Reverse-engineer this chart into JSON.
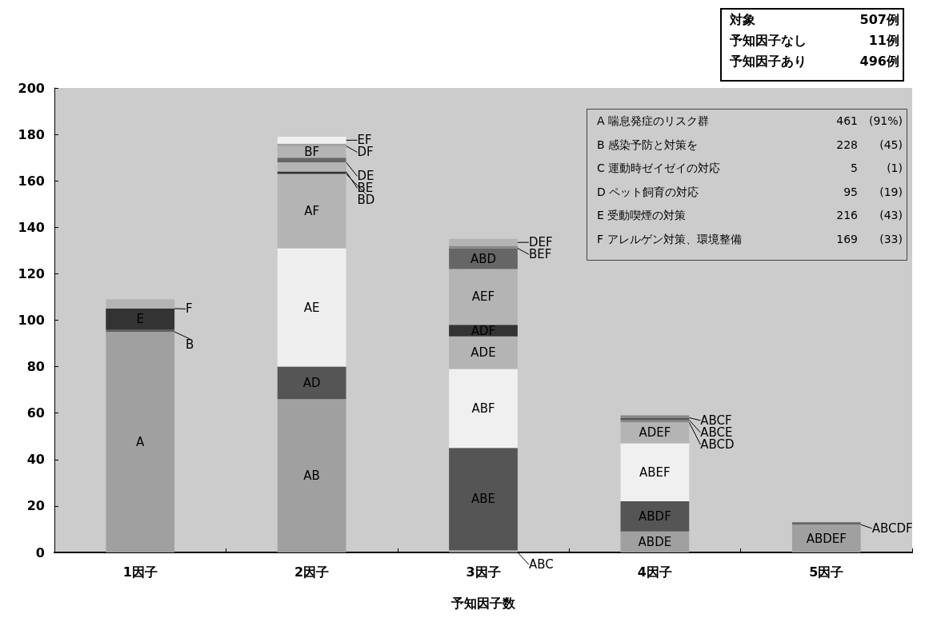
{
  "chart_data": {
    "type": "bar",
    "stacked": true,
    "xlabel": "予知因子数",
    "categories": [
      "1因子",
      "2因子",
      "3因子",
      "4因子",
      "5因子"
    ],
    "ylim": [
      0,
      200
    ],
    "yticks": [
      0,
      20,
      40,
      60,
      80,
      100,
      120,
      140,
      160,
      180,
      200
    ],
    "grid": false,
    "legend": false,
    "series": [
      {
        "name": "A",
        "color": "#a0a0a0",
        "values": [
          95,
          null,
          null,
          null,
          null
        ]
      },
      {
        "name": "B",
        "color": "#606060",
        "values": [
          1,
          null,
          null,
          null,
          null
        ]
      },
      {
        "name": "E",
        "color": "#333333",
        "values": [
          9,
          null,
          null,
          null,
          null
        ]
      },
      {
        "name": "F",
        "color": "#b4b4b4",
        "values": [
          4,
          null,
          null,
          null,
          null
        ]
      },
      {
        "name": "AB",
        "color": "#a0a0a0",
        "values": [
          null,
          66,
          null,
          null,
          null
        ]
      },
      {
        "name": "AD",
        "color": "#555555",
        "values": [
          null,
          14,
          null,
          null,
          null
        ]
      },
      {
        "name": "AE",
        "color": "#efefef",
        "values": [
          null,
          51,
          null,
          null,
          null
        ]
      },
      {
        "name": "AF",
        "color": "#b4b4b4",
        "values": [
          null,
          32,
          null,
          null,
          null
        ]
      },
      {
        "name": "BD",
        "color": "#333333",
        "values": [
          null,
          1,
          null,
          null,
          null
        ]
      },
      {
        "name": "BE",
        "color": "#b4b4b4",
        "values": [
          null,
          4,
          null,
          null,
          null
        ]
      },
      {
        "name": "DE",
        "color": "#666666",
        "values": [
          null,
          2,
          null,
          null,
          null
        ]
      },
      {
        "name": "BF",
        "color": "#b4b4b4",
        "values": [
          null,
          5,
          null,
          null,
          null
        ]
      },
      {
        "name": "DF",
        "color": "#a0a0a0",
        "values": [
          null,
          1,
          null,
          null,
          null
        ]
      },
      {
        "name": "EF",
        "color": "#f0f0f0",
        "values": [
          null,
          3,
          null,
          null,
          null
        ]
      },
      {
        "name": "ABC",
        "color": "#a0a0a0",
        "values": [
          null,
          null,
          1,
          null,
          null
        ]
      },
      {
        "name": "ABE",
        "color": "#555555",
        "values": [
          null,
          null,
          44,
          null,
          null
        ]
      },
      {
        "name": "ABF",
        "color": "#f0f0f0",
        "values": [
          null,
          null,
          34,
          null,
          null
        ]
      },
      {
        "name": "ADE",
        "color": "#b4b4b4",
        "values": [
          null,
          null,
          14,
          null,
          null
        ]
      },
      {
        "name": "ADF",
        "color": "#333333",
        "values": [
          null,
          null,
          5,
          null,
          null
        ]
      },
      {
        "name": "AEF",
        "color": "#b4b4b4",
        "values": [
          null,
          null,
          24,
          null,
          null
        ]
      },
      {
        "name": "ABD",
        "color": "#666666",
        "values": [
          null,
          null,
          9,
          null,
          null
        ]
      },
      {
        "name": "BEF",
        "color": "#888888",
        "values": [
          null,
          null,
          1,
          null,
          null
        ]
      },
      {
        "name": "DEF",
        "color": "#b4b4b4",
        "values": [
          null,
          null,
          3,
          null,
          null
        ]
      },
      {
        "name": "ABDE",
        "color": "#a0a0a0",
        "values": [
          null,
          null,
          null,
          9,
          null
        ]
      },
      {
        "name": "ABDF",
        "color": "#555555",
        "values": [
          null,
          null,
          null,
          13,
          null
        ]
      },
      {
        "name": "ABEF",
        "color": "#f0f0f0",
        "values": [
          null,
          null,
          null,
          25,
          null
        ]
      },
      {
        "name": "ADEF",
        "color": "#b4b4b4",
        "values": [
          null,
          null,
          null,
          9,
          null
        ]
      },
      {
        "name": "ABCD",
        "color": "#888888",
        "values": [
          null,
          null,
          null,
          1,
          null
        ]
      },
      {
        "name": "ABCE",
        "color": "#555555",
        "values": [
          null,
          null,
          null,
          1,
          null
        ]
      },
      {
        "name": "ABCF",
        "color": "#888888",
        "values": [
          null,
          null,
          null,
          1,
          null
        ]
      },
      {
        "name": "ABDEF",
        "color": "#a0a0a0",
        "values": [
          null,
          null,
          null,
          null,
          12
        ]
      },
      {
        "name": "ABCDF",
        "color": "#666666",
        "values": [
          null,
          null,
          null,
          null,
          1
        ]
      }
    ],
    "annotations": [
      "対象  507例",
      "予知因子なし  11例",
      "予知因子あり  496例",
      "A 喘息発症のリスク群  461  (91%)",
      "B 感染予防と対策を  228  (45)",
      "C 運動時ゼイゼイの対応  5  (1)",
      "D ペット飼育の対応  95  (19)",
      "E 受動喫煙の対策  216  (43)",
      "F アレルゲン対策、環境整備  169  (33)"
    ]
  }
}
